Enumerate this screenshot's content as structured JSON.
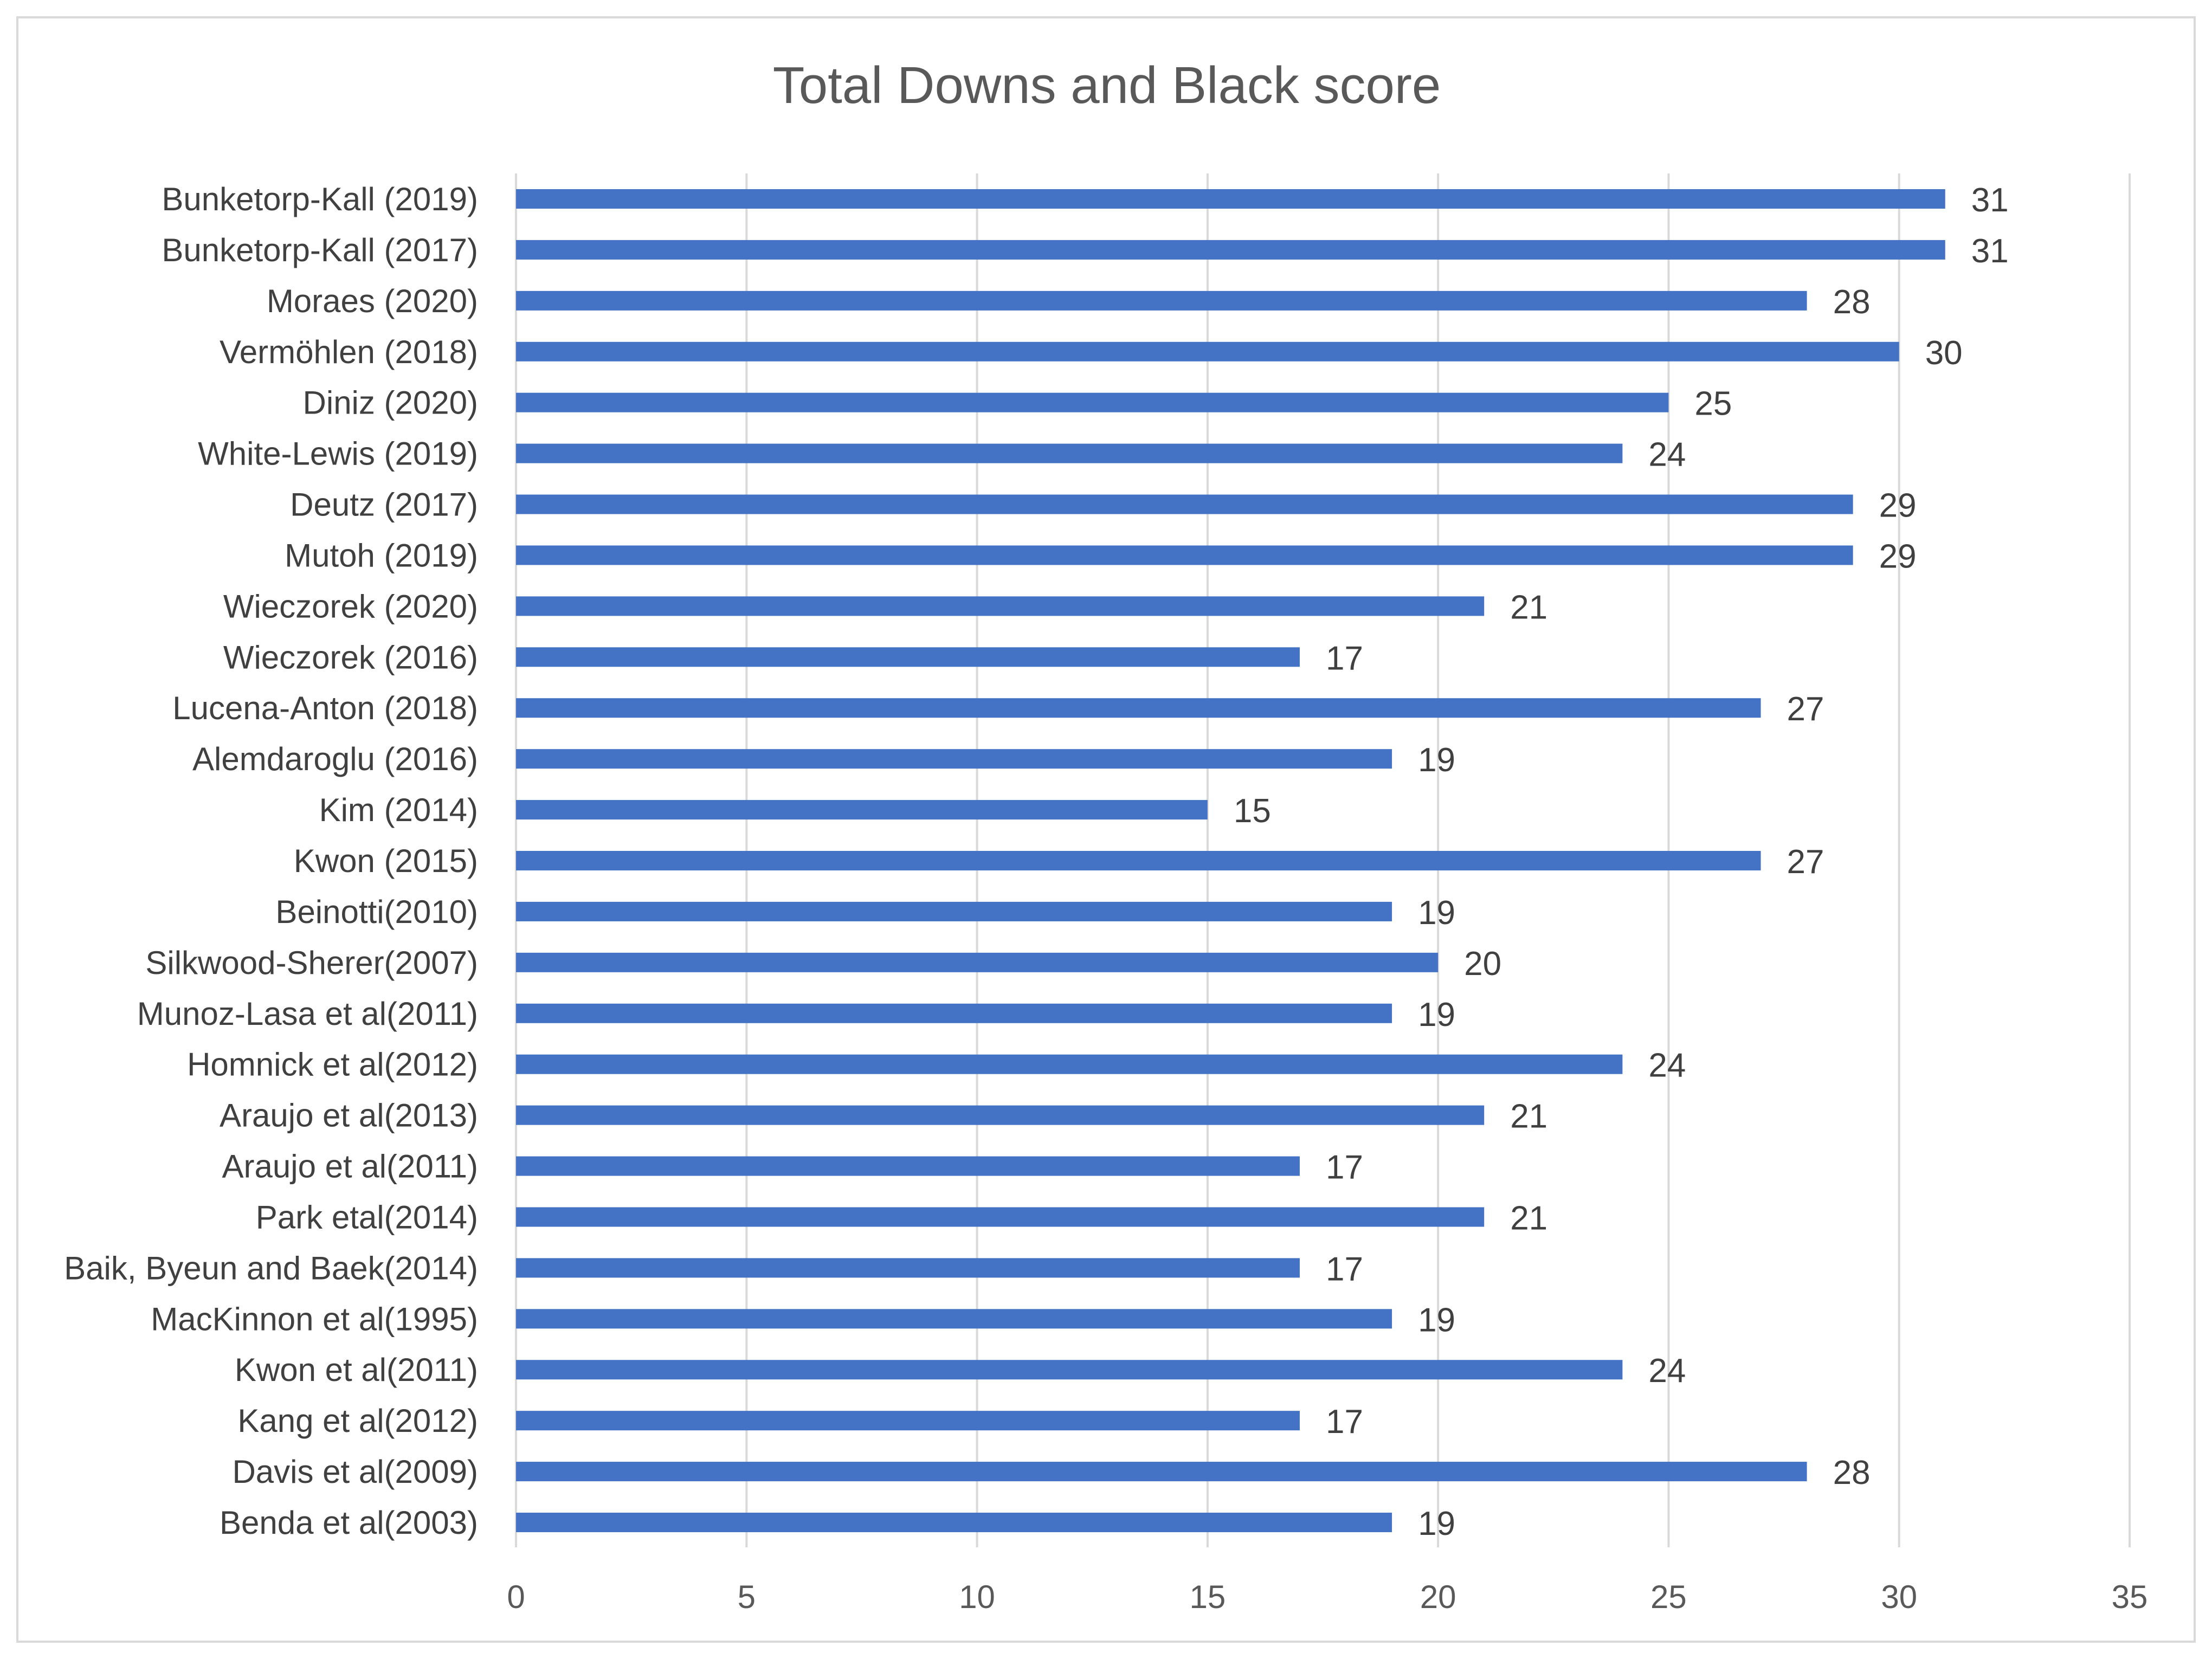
{
  "chart_data": {
    "type": "bar",
    "orientation": "horizontal",
    "title": "Total Downs and Black score",
    "xlabel": "",
    "ylabel": "",
    "xlim": [
      0,
      35
    ],
    "x_ticks": [
      0,
      5,
      10,
      15,
      20,
      25,
      30,
      35
    ],
    "grid": true,
    "legend": "none",
    "bar_color": "#4472c4",
    "categories": [
      "Bunketorp-Kall (2019)",
      "Bunketorp-Kall (2017)",
      "Moraes (2020)",
      "Vermöhlen (2018)",
      "Diniz (2020)",
      "White-Lewis (2019)",
      "Deutz (2017)",
      "Mutoh (2019)",
      "Wieczorek (2020)",
      "Wieczorek (2016)",
      "Lucena-Anton (2018)",
      "Alemdaroglu (2016)",
      "Kim (2014)",
      "Kwon (2015)",
      "Beinotti(2010)",
      "Silkwood-Sherer(2007)",
      "Munoz-Lasa et al(2011)",
      "Homnick et al(2012)",
      "Araujo et al(2013)",
      "Araujo et al(2011)",
      "Park etal(2014)",
      "Baik, Byeun and Baek(2014)",
      "MacKinnon et al(1995)",
      "Kwon et al(2011)",
      "Kang et al(2012)",
      "Davis et al(2009)",
      "Benda et al(2003)"
    ],
    "values": [
      31,
      31,
      28,
      30,
      25,
      24,
      29,
      29,
      21,
      17,
      27,
      19,
      15,
      27,
      19,
      20,
      19,
      24,
      21,
      17,
      21,
      17,
      19,
      24,
      17,
      28,
      19
    ]
  }
}
